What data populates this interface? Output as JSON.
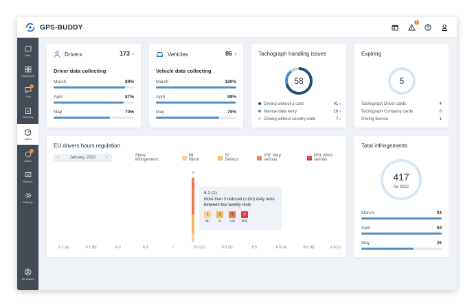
{
  "app": {
    "name": "GPS-BUDDY"
  },
  "topbar": {
    "icons": [
      "calendar-icon",
      "alert-icon",
      "help-icon",
      "user-icon"
    ],
    "alert_badge": "1"
  },
  "sidebar": {
    "items": [
      {
        "label": "Map",
        "icon": "map-icon"
      },
      {
        "label": "Dashboard",
        "icon": "dashboard-icon"
      },
      {
        "label": "Chat",
        "icon": "chat-icon"
      },
      {
        "label": "Planning",
        "icon": "planning-icon"
      },
      {
        "label": "Tacho",
        "icon": "tacho-icon",
        "active": true
      },
      {
        "label": "Alerts",
        "icon": "alerts-icon"
      },
      {
        "label": "Reports",
        "icon": "reports-icon"
      },
      {
        "label": "Settings",
        "icon": "settings-icon"
      }
    ],
    "footer": {
      "label": "My Buddy",
      "icon": "buddy-icon"
    }
  },
  "drivers": {
    "title": "Drivers",
    "count": "173",
    "subtitle": "Driver data collecting",
    "rows": [
      {
        "label": "March",
        "value": "89%",
        "pct": 89
      },
      {
        "label": "April",
        "value": "87%",
        "pct": 87
      },
      {
        "label": "May",
        "value": "70%",
        "pct": 70
      }
    ]
  },
  "vehicles": {
    "title": "Vehicles",
    "count": "86",
    "subtitle": "Vehicle data collecting",
    "rows": [
      {
        "label": "March",
        "value": "100%",
        "pct": 100
      },
      {
        "label": "April",
        "value": "99%",
        "pct": 99
      },
      {
        "label": "May",
        "value": "79%",
        "pct": 79
      }
    ]
  },
  "tacho": {
    "title": "Tachograph handling issues",
    "total": "58",
    "items": [
      {
        "label": "Driving without a card",
        "value": "41",
        "color": "#1f4e7a"
      },
      {
        "label": "Manual data entry",
        "value": "10",
        "color": "#4f8fc4"
      },
      {
        "label": "Driving without country code",
        "value": "7",
        "color": "#b9d3ea"
      }
    ]
  },
  "expiring": {
    "title": "Expiring",
    "total": "5",
    "items": [
      {
        "label": "Tachograph Driver cards",
        "value": "4"
      },
      {
        "label": "Tachograph Company cards",
        "value": "0"
      },
      {
        "label": "Driving license",
        "value": "1"
      }
    ]
  },
  "regulation": {
    "title": "EU drivers hours regulation",
    "month": "January, 2022",
    "show_label": "Show infringement:",
    "filters": [
      {
        "label": "MI: Minor",
        "color": "#f5d49a"
      },
      {
        "label": "SI: Serious",
        "color": "#f2b766"
      },
      {
        "label": "VSI: Very serious",
        "color": "#ee7b4f"
      },
      {
        "label": "MSI: Most serious",
        "color": "#d93a3a"
      }
    ],
    "categories": [
      "6.1 (a)",
      "6.1 (b)",
      "6.2",
      "6.3",
      "7",
      "8.2 (1)",
      "8.3 (2)",
      "8.5",
      "8.6 (a)",
      "8.6 (b)",
      "8.6 (c)"
    ],
    "bar": {
      "category": "8.2 (1)",
      "value": "7",
      "stack": [
        1,
        2,
        4,
        0
      ]
    },
    "tooltip": {
      "title": "8.2 (1)",
      "description": "More than 3 reduced (<11h) daily rests between two weekly rests",
      "severities": [
        {
          "code": "MI",
          "count": "1",
          "color": "#f5d49a"
        },
        {
          "code": "SI",
          "count": "2",
          "color": "#f2b766"
        },
        {
          "code": "VSI",
          "count": "4",
          "color": "#ee7b4f"
        },
        {
          "code": "MSI",
          "count": "0",
          "color": "#d93a3a"
        }
      ]
    }
  },
  "total_infringements": {
    "title": "Total infringements",
    "total": "417",
    "caption": "for 2022",
    "rows": [
      {
        "label": "March",
        "value": "34",
        "pct": 100
      },
      {
        "label": "April",
        "value": "59",
        "pct": 100
      },
      {
        "label": "May",
        "value": "26",
        "pct": 65
      }
    ]
  }
}
